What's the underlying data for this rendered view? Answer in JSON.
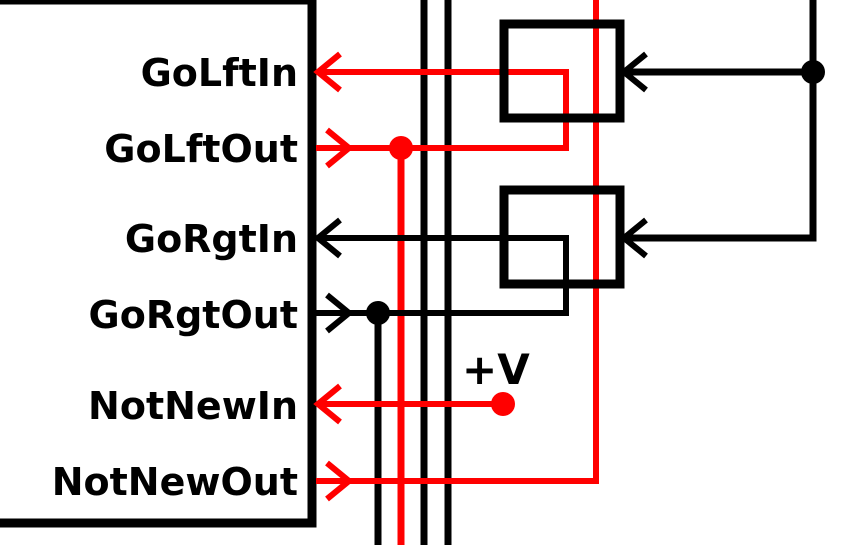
{
  "colors": {
    "red": "#ff0000",
    "black": "#000000"
  },
  "labels": {
    "go_lft_in": "GoLftIn",
    "go_lft_out": "GoLftOut",
    "go_rgt_in": "GoRgtIn",
    "go_rgt_out": "GoRgtOut",
    "not_new_in": "NotNewIn",
    "not_new_out": "NotNewOut",
    "plus_v": "+V"
  }
}
